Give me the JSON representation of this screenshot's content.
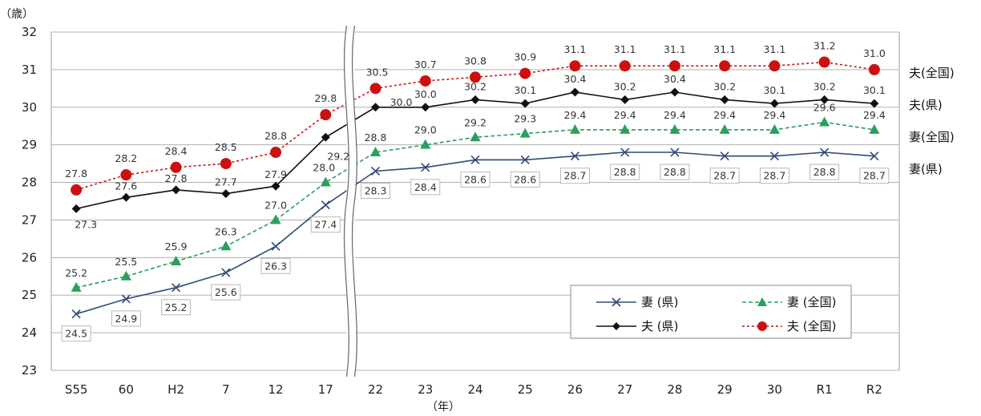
{
  "chart_data": {
    "type": "line",
    "categories": [
      "S55",
      "60",
      "H2",
      "7",
      "12",
      "17",
      "22",
      "23",
      "24",
      "25",
      "26",
      "27",
      "28",
      "29",
      "30",
      "R1",
      "R2"
    ],
    "ylim": [
      23,
      32
    ],
    "yticks": [
      "23",
      "24",
      "25",
      "26",
      "27",
      "28",
      "29",
      "30",
      "31",
      "32"
    ],
    "ylabel": "（歳）",
    "xlabel": "（年）",
    "axis_break_after_index": 5,
    "grid": true,
    "legend_position": "bottom-right",
    "legend_title": "",
    "series": [
      {
        "key": "wife_pref",
        "name": "妻 (県)",
        "end_label": "妻(県)",
        "marker": "x",
        "style": "solid",
        "color": "#2e4a7a",
        "values": [
          24.5,
          24.9,
          25.2,
          25.6,
          26.3,
          27.4,
          28.3,
          28.4,
          28.6,
          28.6,
          28.7,
          28.8,
          28.8,
          28.7,
          28.7,
          28.8,
          28.7
        ],
        "labels": [
          "24.5",
          "24.9",
          "25.2",
          "25.6",
          "26.3",
          "27.4",
          "28.3",
          "28.4",
          "28.6",
          "28.6",
          "28.7",
          "28.8",
          "28.8",
          "28.7",
          "28.7",
          "28.8",
          "28.7"
        ]
      },
      {
        "key": "wife_nat",
        "name": "妻 (全国)",
        "end_label": "妻(全国)",
        "marker": "triangle",
        "style": "dashed",
        "color": "#2aa05a",
        "values": [
          25.2,
          25.5,
          25.9,
          26.3,
          27.0,
          28.0,
          28.8,
          29.0,
          29.2,
          29.3,
          29.4,
          29.4,
          29.4,
          29.4,
          29.4,
          29.6,
          29.4
        ],
        "labels": [
          "25.2",
          "25.5",
          "25.9",
          "26.3",
          "27.0",
          "28.0",
          "28.8",
          "29.0",
          "29.2",
          "29.3",
          "29.4",
          "29.4",
          "29.4",
          "29.4",
          "29.4",
          "29.6",
          "29.4"
        ]
      },
      {
        "key": "husb_pref",
        "name": "夫 (県)",
        "end_label": "夫(県)",
        "marker": "diamond",
        "style": "solid",
        "color": "#111111",
        "values": [
          27.3,
          27.6,
          27.8,
          27.7,
          27.9,
          29.2,
          30.0,
          30.0,
          30.2,
          30.1,
          30.4,
          30.2,
          30.4,
          30.2,
          30.1,
          30.2,
          30.1
        ],
        "labels": [
          "27.3",
          "27.6",
          "27.8",
          "27.7",
          "27.9",
          "29.2",
          "30.0",
          "30.0",
          "30.2",
          "30.1",
          "30.4",
          "30.2",
          "30.4",
          "30.2",
          "30.1",
          "30.2",
          "30.1"
        ]
      },
      {
        "key": "husb_nat",
        "name": "夫 (全国)",
        "end_label": "夫(全国)",
        "marker": "circle",
        "style": "dotted",
        "color": "#cc1010",
        "values": [
          27.8,
          28.2,
          28.4,
          28.5,
          28.8,
          29.8,
          30.5,
          30.7,
          30.8,
          30.9,
          31.1,
          31.1,
          31.1,
          31.1,
          31.1,
          31.2,
          31.0
        ],
        "labels": [
          "27.8",
          "28.2",
          "28.4",
          "28.5",
          "28.8",
          "29.8",
          "30.5",
          "30.7",
          "30.8",
          "30.9",
          "31.1",
          "31.1",
          "31.1",
          "31.1",
          "31.1",
          "31.2",
          "31.0"
        ]
      }
    ]
  }
}
